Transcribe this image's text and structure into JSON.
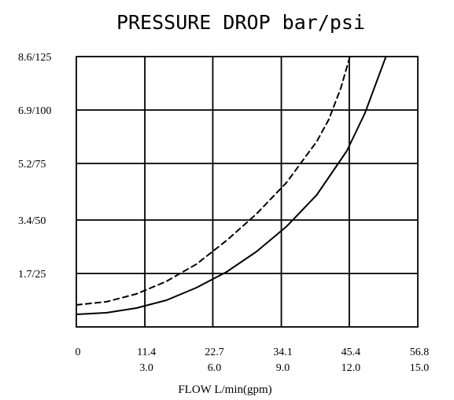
{
  "chart_data": {
    "type": "line",
    "title": "PRESSURE DROP bar/psi",
    "xlabel": "FLOW L/min(gpm)",
    "ylabel": "",
    "x_ticks": [
      {
        "value": 0,
        "primary": "0",
        "secondary": ""
      },
      {
        "value": 11.4,
        "primary": "11.4",
        "secondary": "3.0"
      },
      {
        "value": 22.7,
        "primary": "22.7",
        "secondary": "6.0"
      },
      {
        "value": 34.1,
        "primary": "34.1",
        "secondary": "9.0"
      },
      {
        "value": 45.4,
        "primary": "45.4",
        "secondary": "12.0"
      },
      {
        "value": 56.8,
        "primary": "56.8",
        "secondary": "15.0"
      }
    ],
    "y_ticks": [
      {
        "value": 1.7,
        "label": "1.7/25"
      },
      {
        "value": 3.4,
        "label": "3.4/50"
      },
      {
        "value": 5.2,
        "label": "5.2/75"
      },
      {
        "value": 6.9,
        "label": "6.9/100"
      },
      {
        "value": 8.6,
        "label": "8.6/125"
      }
    ],
    "xlim": [
      0,
      56.8
    ],
    "ylim": [
      0,
      8.6
    ],
    "grid": true,
    "series": [
      {
        "style": "dashed",
        "x": [
          0,
          5,
          10,
          15,
          20,
          25,
          30,
          35,
          40,
          42,
          44,
          45.5
        ],
        "y": [
          0.7,
          0.8,
          1.05,
          1.45,
          2.0,
          2.75,
          3.6,
          4.6,
          5.9,
          6.6,
          7.6,
          8.6
        ]
      },
      {
        "style": "solid",
        "x": [
          0,
          5,
          10,
          15,
          20,
          25,
          30,
          35,
          40,
          45,
          48,
          51.5
        ],
        "y": [
          0.4,
          0.45,
          0.6,
          0.85,
          1.25,
          1.75,
          2.4,
          3.2,
          4.2,
          5.6,
          6.8,
          8.6
        ]
      }
    ]
  }
}
